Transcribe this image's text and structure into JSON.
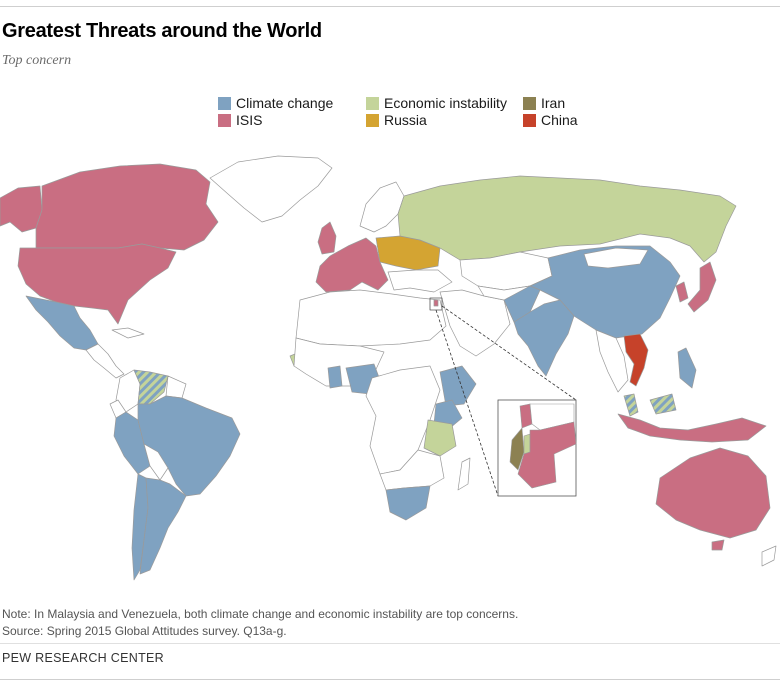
{
  "header": {
    "title": "Greatest Threats around the World",
    "subtitle": "Top concern"
  },
  "legend": {
    "items": [
      {
        "key": "climate",
        "label": "Climate change",
        "color": "#7fa2c1"
      },
      {
        "key": "isis",
        "label": "ISIS",
        "color": "#c96e82"
      },
      {
        "key": "economic",
        "label": "Economic instability",
        "color": "#c4d49a"
      },
      {
        "key": "russia",
        "label": "Russia",
        "color": "#d4a432"
      },
      {
        "key": "iran",
        "label": "Iran",
        "color": "#8c8152"
      },
      {
        "key": "china",
        "label": "China",
        "color": "#c6422a"
      }
    ]
  },
  "map": {
    "land_color": "#ffffff",
    "border_color": "#9a9a9a",
    "inset_region": "Israel / Palestinian territories / Jordan / Lebanon",
    "hatched_regions": [
      "Venezuela",
      "Malaysia"
    ]
  },
  "footer": {
    "note": "Note: In Malaysia and Venezuela, both climate change and economic instability are top concerns.",
    "source": "Source: Spring 2015 Global Attitudes survey. Q13a-g.",
    "org": "PEW RESEARCH CENTER"
  }
}
